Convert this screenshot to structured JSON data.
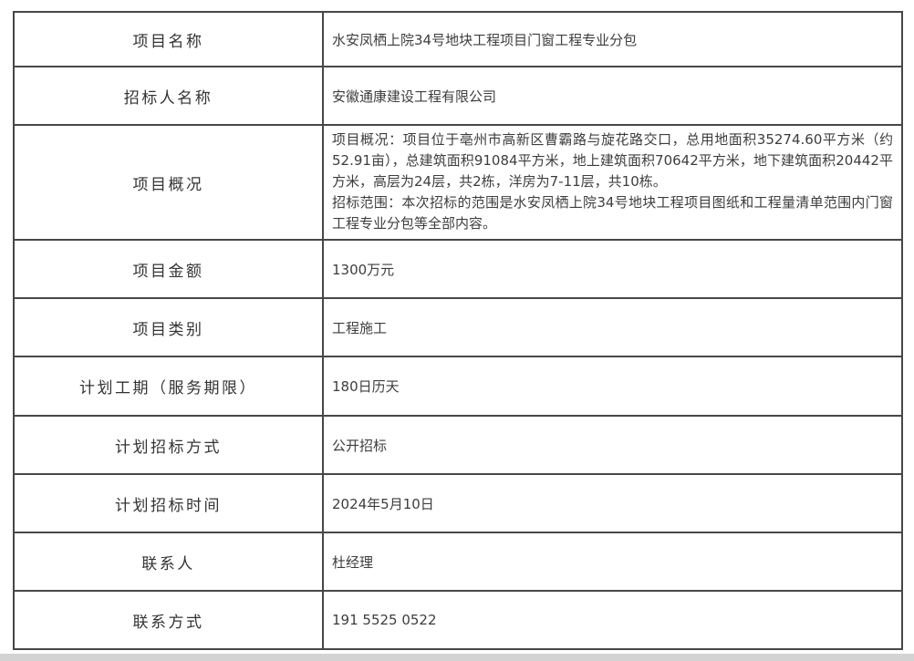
{
  "page": {
    "background_color": "#ffffff",
    "table_border_color": "#474747",
    "label_text_color": "#333333",
    "value_text_color": "#3d3d3d",
    "bottom_strip_color": "#d3d3d3"
  },
  "table": {
    "rows": [
      {
        "label": "项目名称",
        "value": "水安凤栖上院34号地块工程项目门窗工程专业分包"
      },
      {
        "label": "招标人名称",
        "value": "安徽通康建设工程有限公司"
      },
      {
        "label": "项目概况",
        "value_line1": "项目概况：项目位于亳州市高新区曹霸路与旋花路交口，总用地面积35274.60平方米（约52.91亩），总建筑面积91084平方米，地上建筑面积70642平方米，地下建筑面积20442平方米，高层为24层，共2栋，洋房为7-11层，共10栋。",
        "value_line2": "招标范围：本次招标的范围是水安凤栖上院34号地块工程项目图纸和工程量清单范围内门窗工程专业分包等全部内容。"
      },
      {
        "label": "项目金额",
        "value": "1300万元"
      },
      {
        "label": "项目类别",
        "value": "工程施工"
      },
      {
        "label": "计划工期（服务期限）",
        "value": "180日历天"
      },
      {
        "label": "计划招标方式",
        "value": "公开招标"
      },
      {
        "label": "计划招标时间",
        "value": "2024年5月10日"
      },
      {
        "label": "联系人",
        "value": "杜经理"
      },
      {
        "label": "联系方式",
        "value": "191 5525 0522"
      }
    ]
  }
}
